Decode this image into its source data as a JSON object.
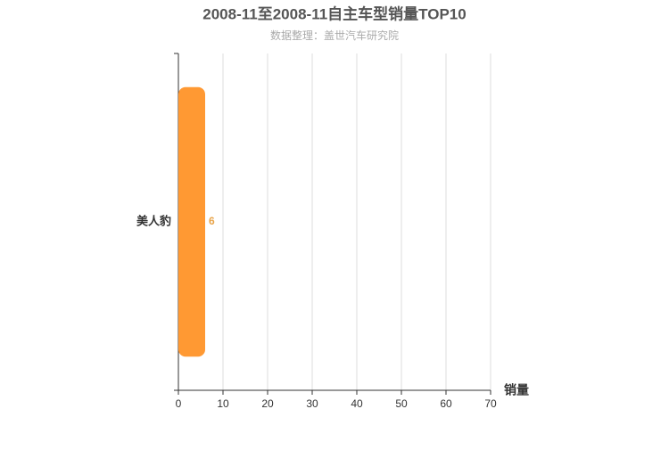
{
  "chart_data": {
    "type": "bar",
    "orientation": "horizontal",
    "title": "2008-11至2008-11自主车型销量TOP10",
    "subtitle": "数据整理：盖世汽车研究院",
    "x_label": "销量",
    "categories": [
      "美人豹"
    ],
    "values": [
      6
    ],
    "color": "#ff9933",
    "value_label_color": "#e8a44a",
    "xlim": [
      0,
      70
    ],
    "xticks": [
      0,
      10,
      20,
      30,
      40,
      50,
      60,
      70
    ],
    "grid": true
  }
}
